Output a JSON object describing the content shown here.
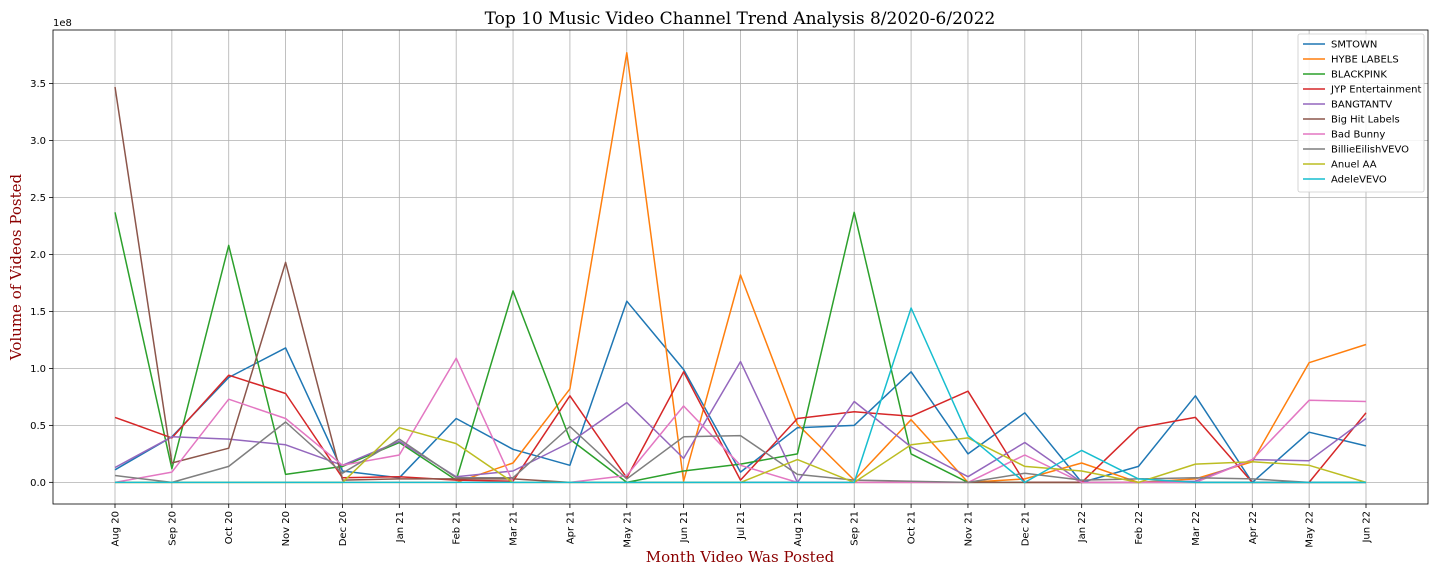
{
  "chart_data": {
    "type": "line",
    "title": "Top 10 Music Video Channel Trend Analysis 8/2020-6/2022",
    "xlabel": "Month Video Was Posted",
    "ylabel": "Volume of Videos Posted",
    "y_multiplier_label": "1e8",
    "categories": [
      "Aug 20",
      "Sep 20",
      "Oct 20",
      "Nov 20",
      "Dec 20",
      "Jan 21",
      "Feb 21",
      "Mar 21",
      "Apr 21",
      "May 21",
      "Jun 21",
      "Jul 21",
      "Aug 21",
      "Sep 21",
      "Oct 21",
      "Nov 21",
      "Dec 21",
      "Jan 22",
      "Feb 22",
      "Mar 22",
      "Apr 22",
      "May 22",
      "Jun 22"
    ],
    "yticks": [
      0.0,
      0.5,
      1.0,
      1.5,
      2.0,
      2.5,
      3.0,
      3.5
    ],
    "ytick_labels": [
      "0.0",
      "0.5",
      "1.0",
      "1.5",
      "2.0",
      "2.5",
      "3.0",
      "3.5"
    ],
    "ylim": [
      -0.19,
      3.97
    ],
    "y_scale_note": "values in units of 1e8",
    "grid": true,
    "legend_position": "top-right",
    "series": [
      {
        "name": "SMTOWN",
        "color": "#1f77b4",
        "values": [
          0.11,
          0.4,
          0.92,
          1.18,
          0.1,
          0.04,
          0.56,
          0.29,
          0.15,
          1.59,
          0.99,
          0.09,
          0.48,
          0.5,
          0.97,
          0.25,
          0.61,
          0.0,
          0.14,
          0.76,
          0.0,
          0.44,
          0.32
        ]
      },
      {
        "name": "HYBE LABELS",
        "color": "#ff7f0e",
        "values": [
          0.0,
          0.0,
          0.0,
          0.0,
          0.0,
          0.0,
          0.0,
          0.17,
          0.82,
          3.77,
          0.01,
          1.82,
          0.51,
          0.02,
          0.55,
          0.0,
          0.03,
          0.17,
          0.0,
          0.03,
          0.18,
          1.05,
          1.21
        ]
      },
      {
        "name": "BLACKPINK",
        "color": "#2ca02c",
        "values": [
          2.37,
          0.12,
          2.08,
          0.07,
          0.14,
          0.35,
          0.02,
          1.68,
          0.38,
          0.0,
          0.1,
          0.16,
          0.25,
          2.37,
          0.25,
          0.0,
          0.0,
          0.0,
          0.0,
          0.0,
          0.0,
          0.0,
          0.0
        ]
      },
      {
        "name": "JYP Entertainment",
        "color": "#d62728",
        "values": [
          0.57,
          0.39,
          0.94,
          0.78,
          0.04,
          0.05,
          0.02,
          0.01,
          0.76,
          0.04,
          0.97,
          0.02,
          0.56,
          0.62,
          0.58,
          0.8,
          0.0,
          0.0,
          0.48,
          0.57,
          0.0,
          0.0,
          0.61
        ]
      },
      {
        "name": "BANGTANTV",
        "color": "#9467bd",
        "values": [
          0.13,
          0.4,
          0.38,
          0.33,
          0.15,
          0.36,
          0.05,
          0.1,
          0.35,
          0.7,
          0.21,
          1.06,
          0.0,
          0.71,
          0.31,
          0.05,
          0.35,
          0.0,
          0.0,
          0.01,
          0.2,
          0.19,
          0.56
        ]
      },
      {
        "name": "Big Hit Labels",
        "color": "#8c564b",
        "values": [
          3.47,
          0.17,
          0.3,
          1.93,
          0.02,
          0.03,
          0.03,
          0.03,
          0.0,
          0.0,
          0.0,
          0.0,
          0.0,
          0.0,
          0.0,
          0.0,
          0.0,
          0.0,
          0.0,
          0.0,
          0.0,
          0.0,
          0.0
        ]
      },
      {
        "name": "Bad Bunny",
        "color": "#e377c2",
        "values": [
          0.0,
          0.09,
          0.73,
          0.56,
          0.15,
          0.24,
          1.09,
          0.0,
          0.0,
          0.06,
          0.67,
          0.15,
          0.0,
          0.0,
          0.0,
          0.0,
          0.24,
          0.0,
          0.0,
          0.0,
          0.2,
          0.72,
          0.71
        ]
      },
      {
        "name": "BillieEilishVEVO",
        "color": "#7f7f7f",
        "values": [
          0.06,
          0.0,
          0.14,
          0.53,
          0.08,
          0.38,
          0.04,
          0.04,
          0.49,
          0.03,
          0.4,
          0.41,
          0.07,
          0.02,
          0.01,
          0.0,
          0.08,
          0.02,
          0.03,
          0.04,
          0.03,
          0.0,
          0.0
        ]
      },
      {
        "name": "Anuel AA",
        "color": "#bcbd22",
        "values": [
          0.0,
          0.0,
          0.0,
          0.0,
          0.0,
          0.48,
          0.34,
          0.0,
          0.0,
          0.0,
          0.0,
          0.0,
          0.2,
          0.0,
          0.33,
          0.39,
          0.14,
          0.1,
          0.0,
          0.16,
          0.18,
          0.15,
          0.0
        ]
      },
      {
        "name": "AdeleVEVO",
        "color": "#17becf",
        "values": [
          0.0,
          0.0,
          0.0,
          0.0,
          0.0,
          0.0,
          0.0,
          0.0,
          0.0,
          0.0,
          0.0,
          0.0,
          0.0,
          0.0,
          1.53,
          0.41,
          0.0,
          0.28,
          0.03,
          0.0,
          0.0,
          0.0,
          0.0
        ]
      }
    ]
  }
}
